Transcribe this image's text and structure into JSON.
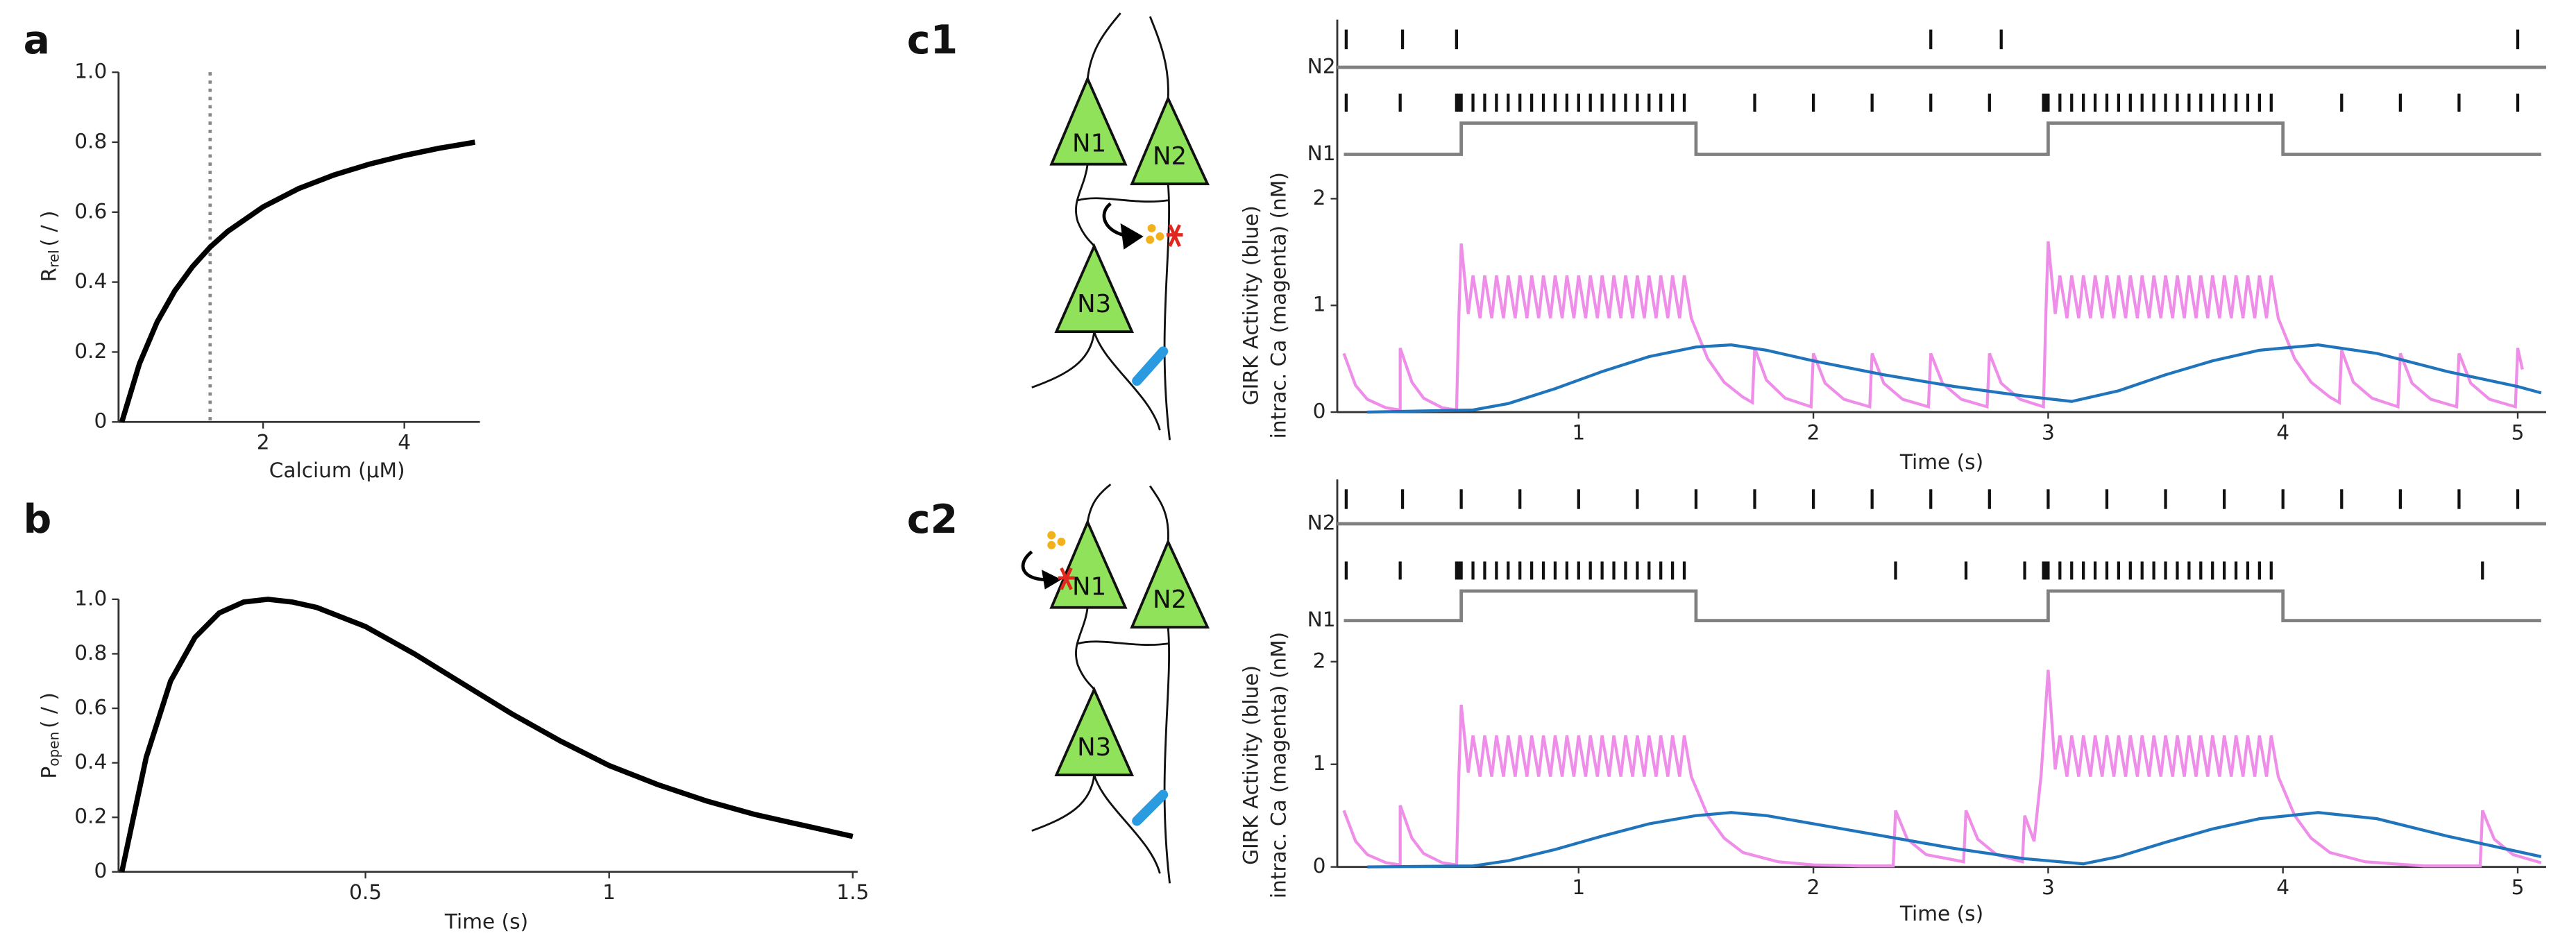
{
  "chart_data": [
    {
      "type": "line",
      "panel": "a",
      "xlabel": "Calcium (μM)",
      "ylabel": {
        "main": "R",
        "sub": "rel",
        "unit": "( / )"
      },
      "xlim": [
        0,
        5
      ],
      "xticks": [
        2,
        4
      ],
      "ylim": [
        0,
        1
      ],
      "yticks": [
        0,
        0.2,
        0.4,
        0.6,
        0.8,
        {
          "value": 1,
          "label": "1.0"
        }
      ],
      "vline": 1.25,
      "color": "#000000",
      "x": [
        0,
        0.25,
        0.5,
        0.75,
        1,
        1.25,
        1.5,
        2,
        2.5,
        3,
        3.5,
        4,
        4.5,
        5
      ],
      "values": [
        0,
        0.167,
        0.286,
        0.375,
        0.444,
        0.5,
        0.545,
        0.615,
        0.667,
        0.706,
        0.737,
        0.762,
        0.783,
        0.8
      ]
    },
    {
      "type": "line",
      "panel": "b",
      "xlabel": "Time (s)",
      "ylabel": {
        "main": "P",
        "sub": "open",
        "unit": "( / )"
      },
      "xlim": [
        0,
        1.5
      ],
      "xticks": [
        0.5,
        1,
        1.5
      ],
      "ylim": [
        0,
        1
      ],
      "yticks": [
        0,
        0.2,
        0.4,
        0.6,
        0.8,
        {
          "value": 1,
          "label": "1.0"
        }
      ],
      "color": "#000000",
      "x": [
        0,
        0.05,
        0.1,
        0.15,
        0.2,
        0.25,
        0.3,
        0.35,
        0.4,
        0.5,
        0.6,
        0.7,
        0.8,
        0.9,
        1.0,
        1.1,
        1.2,
        1.3,
        1.4,
        1.5
      ],
      "values": [
        0,
        0.42,
        0.7,
        0.86,
        0.95,
        0.99,
        1.0,
        0.99,
        0.97,
        0.9,
        0.8,
        0.69,
        0.58,
        0.48,
        0.39,
        0.32,
        0.26,
        0.21,
        0.17,
        0.13
      ]
    },
    {
      "type": "trace",
      "panel": "c1",
      "neuron_labels": [
        "N1",
        "N2",
        "N3"
      ],
      "xlabel": "Time (s)",
      "ylabel": [
        "GIRK Activity (blue)",
        "intrac. Ca (magenta) (nM)"
      ],
      "xlim": [
        0,
        5.1
      ],
      "xticks": [
        1,
        2,
        3,
        4,
        5
      ],
      "ylim": [
        0,
        2
      ],
      "yticks": [
        0,
        1,
        2
      ],
      "rasters": [
        {
          "name": "N2",
          "spikes": [
            0.01,
            0.25,
            0.48,
            2.5,
            2.8,
            5.0
          ]
        },
        {
          "name": "N1",
          "spikes": [
            0.01,
            0.24,
            0.48,
            0.49,
            0.5,
            0.55,
            0.6,
            0.65,
            0.7,
            0.75,
            0.8,
            0.85,
            0.9,
            0.95,
            1.0,
            1.05,
            1.1,
            1.15,
            1.2,
            1.25,
            1.3,
            1.35,
            1.4,
            1.45,
            1.75,
            2.0,
            2.25,
            2.5,
            2.75,
            2.98,
            2.99,
            3.0,
            3.05,
            3.1,
            3.15,
            3.2,
            3.25,
            3.3,
            3.35,
            3.4,
            3.45,
            3.5,
            3.55,
            3.6,
            3.65,
            3.7,
            3.75,
            3.8,
            3.85,
            3.9,
            3.95,
            4.25,
            4.5,
            4.75,
            5.0
          ],
          "step_x": [
            0,
            0.5,
            0.5,
            1.5,
            1.5,
            3,
            3,
            4,
            4,
            5.1
          ],
          "step": [
            0,
            0,
            1,
            1,
            0,
            0,
            1,
            1,
            0,
            0
          ]
        }
      ],
      "series": [
        {
          "color": "#ee8ee8",
          "x": [
            0,
            0.05,
            0.1,
            0.18,
            0.24,
            0.24,
            0.29,
            0.34,
            0.42,
            0.48,
            0.49,
            0.5,
            0.53,
            0.55,
            0.58,
            0.6,
            0.63,
            0.65,
            0.68,
            0.7,
            0.73,
            0.75,
            0.78,
            0.8,
            0.83,
            0.85,
            0.88,
            0.9,
            0.93,
            0.95,
            0.98,
            1.0,
            1.03,
            1.05,
            1.08,
            1.1,
            1.13,
            1.15,
            1.18,
            1.2,
            1.23,
            1.25,
            1.28,
            1.3,
            1.33,
            1.35,
            1.38,
            1.4,
            1.43,
            1.45,
            1.48,
            1.55,
            1.62,
            1.7,
            1.74,
            1.75,
            1.8,
            1.88,
            1.99,
            2.0,
            2.05,
            2.13,
            2.24,
            2.25,
            2.3,
            2.38,
            2.49,
            2.5,
            2.55,
            2.63,
            2.74,
            2.75,
            2.8,
            2.88,
            2.98,
            2.99,
            3.0,
            3.03,
            3.05,
            3.08,
            3.1,
            3.13,
            3.15,
            3.18,
            3.2,
            3.23,
            3.25,
            3.28,
            3.3,
            3.33,
            3.35,
            3.38,
            3.4,
            3.43,
            3.45,
            3.48,
            3.5,
            3.53,
            3.55,
            3.58,
            3.6,
            3.63,
            3.65,
            3.68,
            3.7,
            3.73,
            3.75,
            3.78,
            3.8,
            3.83,
            3.85,
            3.88,
            3.9,
            3.93,
            3.95,
            3.98,
            4.05,
            4.12,
            4.2,
            4.24,
            4.25,
            4.3,
            4.38,
            4.49,
            4.5,
            4.55,
            4.63,
            4.74,
            4.75,
            4.8,
            4.88,
            4.99,
            5.0,
            5.02
          ],
          "values": [
            0.55,
            0.25,
            0.12,
            0.04,
            0.02,
            0.6,
            0.28,
            0.13,
            0.04,
            0.02,
            0.9,
            1.58,
            0.92,
            1.28,
            0.88,
            1.28,
            0.88,
            1.28,
            0.88,
            1.28,
            0.88,
            1.28,
            0.88,
            1.28,
            0.88,
            1.28,
            0.88,
            1.28,
            0.88,
            1.28,
            0.88,
            1.28,
            0.88,
            1.28,
            0.88,
            1.28,
            0.88,
            1.28,
            0.88,
            1.28,
            0.88,
            1.28,
            0.88,
            1.28,
            0.88,
            1.28,
            0.88,
            1.28,
            0.88,
            1.28,
            0.88,
            0.5,
            0.28,
            0.14,
            0.09,
            0.6,
            0.3,
            0.13,
            0.05,
            0.55,
            0.27,
            0.12,
            0.05,
            0.55,
            0.27,
            0.12,
            0.05,
            0.55,
            0.27,
            0.12,
            0.05,
            0.55,
            0.27,
            0.12,
            0.05,
            0.9,
            1.6,
            0.92,
            1.28,
            0.88,
            1.28,
            0.88,
            1.28,
            0.88,
            1.28,
            0.88,
            1.28,
            0.88,
            1.28,
            0.88,
            1.28,
            0.88,
            1.28,
            0.88,
            1.28,
            0.88,
            1.28,
            0.88,
            1.28,
            0.88,
            1.28,
            0.88,
            1.28,
            0.88,
            1.28,
            0.88,
            1.28,
            0.88,
            1.28,
            0.88,
            1.28,
            0.88,
            1.28,
            0.88,
            1.28,
            0.88,
            0.5,
            0.28,
            0.14,
            0.09,
            0.58,
            0.28,
            0.13,
            0.05,
            0.55,
            0.27,
            0.12,
            0.05,
            0.55,
            0.27,
            0.12,
            0.05,
            0.6,
            0.4
          ]
        },
        {
          "color": "#1f74bb",
          "x": [
            0.1,
            0.55,
            0.7,
            0.9,
            1.1,
            1.3,
            1.5,
            1.65,
            1.8,
            2.0,
            2.3,
            2.6,
            2.9,
            3.1,
            3.3,
            3.5,
            3.7,
            3.9,
            4.15,
            4.4,
            4.7,
            5.0,
            5.1
          ],
          "values": [
            0,
            0.02,
            0.08,
            0.22,
            0.38,
            0.52,
            0.61,
            0.63,
            0.58,
            0.48,
            0.35,
            0.24,
            0.15,
            0.1,
            0.2,
            0.35,
            0.48,
            0.58,
            0.63,
            0.55,
            0.38,
            0.24,
            0.18
          ]
        }
      ]
    },
    {
      "type": "trace",
      "panel": "c2",
      "neuron_labels": [
        "N1",
        "N2",
        "N3"
      ],
      "xlabel": "Time (s)",
      "ylabel": [
        "GIRK Activity (blue)",
        "intrac. Ca (magenta) (nM)"
      ],
      "xlim": [
        0,
        5.1
      ],
      "xticks": [
        1,
        2,
        3,
        4,
        5
      ],
      "ylim": [
        0,
        2
      ],
      "yticks": [
        0,
        1,
        2
      ],
      "rasters": [
        {
          "name": "N2",
          "spikes": [
            0.01,
            0.25,
            0.5,
            0.75,
            1.0,
            1.25,
            1.5,
            1.75,
            2.0,
            2.25,
            2.5,
            2.75,
            3.0,
            3.25,
            3.5,
            3.75,
            4.0,
            4.25,
            4.5,
            4.75,
            5.0
          ]
        },
        {
          "name": "N1",
          "spikes": [
            0.01,
            0.24,
            0.48,
            0.49,
            0.5,
            0.55,
            0.6,
            0.65,
            0.7,
            0.75,
            0.8,
            0.85,
            0.9,
            0.95,
            1.0,
            1.05,
            1.1,
            1.15,
            1.2,
            1.25,
            1.3,
            1.35,
            1.4,
            1.45,
            2.35,
            2.65,
            2.9,
            2.98,
            2.99,
            3.0,
            3.05,
            3.1,
            3.15,
            3.2,
            3.25,
            3.3,
            3.35,
            3.4,
            3.45,
            3.5,
            3.55,
            3.6,
            3.65,
            3.7,
            3.75,
            3.8,
            3.85,
            3.9,
            3.95,
            4.85
          ],
          "step_x": [
            0,
            0.5,
            0.5,
            1.5,
            1.5,
            3,
            3,
            4,
            4,
            5.1
          ],
          "step": [
            0,
            0,
            1,
            1,
            0,
            0,
            1,
            1,
            0,
            0
          ]
        }
      ],
      "series": [
        {
          "color": "#ee8ee8",
          "x": [
            0,
            0.05,
            0.1,
            0.18,
            0.24,
            0.24,
            0.29,
            0.34,
            0.42,
            0.48,
            0.49,
            0.5,
            0.53,
            0.55,
            0.58,
            0.6,
            0.63,
            0.65,
            0.68,
            0.7,
            0.73,
            0.75,
            0.78,
            0.8,
            0.83,
            0.85,
            0.88,
            0.9,
            0.93,
            0.95,
            0.98,
            1.0,
            1.03,
            1.05,
            1.08,
            1.1,
            1.13,
            1.15,
            1.18,
            1.2,
            1.23,
            1.25,
            1.28,
            1.3,
            1.33,
            1.35,
            1.38,
            1.4,
            1.43,
            1.45,
            1.48,
            1.55,
            1.62,
            1.7,
            1.85,
            2.0,
            2.2,
            2.34,
            2.35,
            2.4,
            2.48,
            2.64,
            2.65,
            2.7,
            2.78,
            2.89,
            2.9,
            2.94,
            2.97,
            3.0,
            3.03,
            3.05,
            3.08,
            3.1,
            3.13,
            3.15,
            3.18,
            3.2,
            3.23,
            3.25,
            3.28,
            3.3,
            3.33,
            3.35,
            3.38,
            3.4,
            3.43,
            3.45,
            3.48,
            3.5,
            3.53,
            3.55,
            3.58,
            3.6,
            3.63,
            3.65,
            3.68,
            3.7,
            3.73,
            3.75,
            3.78,
            3.8,
            3.83,
            3.85,
            3.88,
            3.9,
            3.93,
            3.95,
            3.98,
            4.05,
            4.12,
            4.2,
            4.35,
            4.6,
            4.84,
            4.85,
            4.9,
            4.98,
            5.1
          ],
          "values": [
            0.55,
            0.25,
            0.12,
            0.04,
            0.02,
            0.6,
            0.28,
            0.13,
            0.04,
            0.02,
            0.9,
            1.58,
            0.92,
            1.28,
            0.88,
            1.28,
            0.88,
            1.28,
            0.88,
            1.28,
            0.88,
            1.28,
            0.88,
            1.28,
            0.88,
            1.28,
            0.88,
            1.28,
            0.88,
            1.28,
            0.88,
            1.28,
            0.88,
            1.28,
            0.88,
            1.28,
            0.88,
            1.28,
            0.88,
            1.28,
            0.88,
            1.28,
            0.88,
            1.28,
            0.88,
            1.28,
            0.88,
            1.28,
            0.88,
            1.28,
            0.88,
            0.5,
            0.28,
            0.14,
            0.05,
            0.02,
            0.01,
            0.01,
            0.55,
            0.27,
            0.12,
            0.05,
            0.55,
            0.27,
            0.12,
            0.05,
            0.5,
            0.25,
            0.9,
            1.92,
            0.95,
            1.28,
            0.88,
            1.28,
            0.88,
            1.28,
            0.88,
            1.28,
            0.88,
            1.28,
            0.88,
            1.28,
            0.88,
            1.28,
            0.88,
            1.28,
            0.88,
            1.28,
            0.88,
            1.28,
            0.88,
            1.28,
            0.88,
            1.28,
            0.88,
            1.28,
            0.88,
            1.28,
            0.88,
            1.28,
            0.88,
            1.28,
            0.88,
            1.28,
            0.88,
            1.28,
            0.88,
            1.28,
            0.88,
            0.5,
            0.28,
            0.14,
            0.05,
            0.01,
            0.01,
            0.55,
            0.27,
            0.12,
            0.04
          ]
        },
        {
          "color": "#1f74bb",
          "x": [
            0.1,
            0.55,
            0.7,
            0.9,
            1.1,
            1.3,
            1.5,
            1.65,
            1.8,
            2.0,
            2.3,
            2.6,
            2.9,
            3.15,
            3.3,
            3.5,
            3.7,
            3.9,
            4.15,
            4.4,
            4.7,
            5.0,
            5.1
          ],
          "values": [
            0,
            0.01,
            0.06,
            0.17,
            0.3,
            0.42,
            0.5,
            0.53,
            0.5,
            0.42,
            0.3,
            0.18,
            0.08,
            0.03,
            0.1,
            0.24,
            0.37,
            0.47,
            0.53,
            0.47,
            0.3,
            0.15,
            0.1
          ]
        }
      ]
    }
  ]
}
